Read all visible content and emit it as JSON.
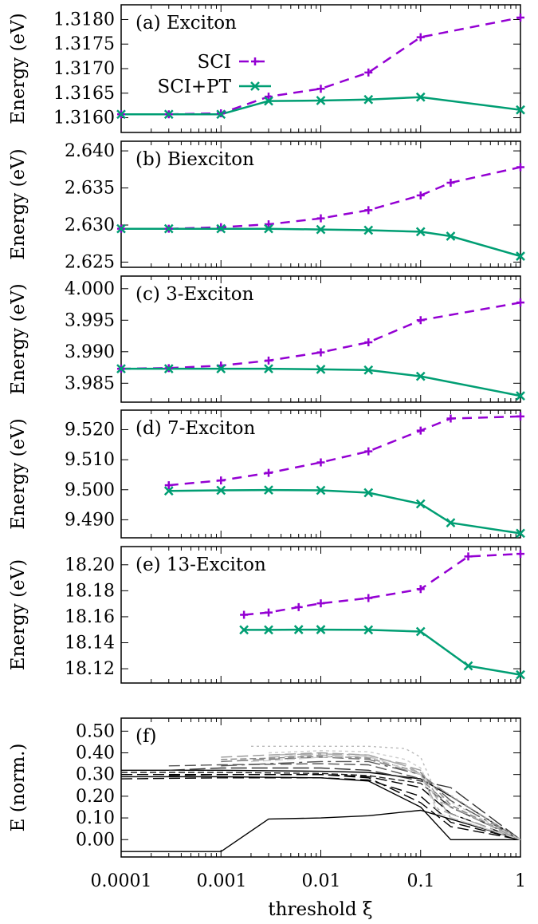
{
  "colors": {
    "sci": "#9400d3",
    "sci_pt": "#009e73",
    "axis": "#000000"
  },
  "xaxis": {
    "label": "threshold ξ",
    "scale": "log",
    "range": [
      0.0001,
      1
    ],
    "ticks": [
      0.0001,
      0.001,
      0.01,
      0.1,
      1
    ],
    "tick_labels": [
      "0.0001",
      "0.001",
      "0.01",
      "0.1",
      "1"
    ]
  },
  "chart_data": [
    {
      "type": "line",
      "panel_label": "(a)  Exciton",
      "ylabel": "Energy (eV)",
      "ylim": [
        1.3157,
        1.3183
      ],
      "yticks": [
        1.316,
        1.3165,
        1.317,
        1.3175,
        1.318
      ],
      "ytick_labels": [
        "1.3160",
        "1.3165",
        "1.3170",
        "1.3175",
        "1.3180"
      ],
      "legend": {
        "placement": "top-left",
        "entries": [
          "SCI",
          "SCI+PT"
        ]
      },
      "series": [
        {
          "name": "SCI",
          "style": "dashed",
          "marker": "plus",
          "x": [
            0.0001,
            0.0003,
            0.001,
            0.003,
            0.01,
            0.03,
            0.1,
            1
          ],
          "y": [
            1.31607,
            1.31607,
            1.31609,
            1.31643,
            1.31659,
            1.31692,
            1.31764,
            1.31804
          ]
        },
        {
          "name": "SCI+PT",
          "style": "solid",
          "marker": "cross",
          "x": [
            0.0001,
            0.0003,
            0.001,
            0.003,
            0.01,
            0.03,
            0.1,
            1
          ],
          "y": [
            1.31607,
            1.31607,
            1.31607,
            1.31634,
            1.31635,
            1.31637,
            1.31642,
            1.31616
          ]
        }
      ]
    },
    {
      "type": "line",
      "panel_label": "(b)  Biexciton",
      "ylabel": "Energy (eV)",
      "ylim": [
        2.6243,
        2.6413
      ],
      "yticks": [
        2.625,
        2.63,
        2.635,
        2.64
      ],
      "ytick_labels": [
        "2.625",
        "2.630",
        "2.635",
        "2.640"
      ],
      "series": [
        {
          "name": "SCI",
          "style": "dashed",
          "marker": "plus",
          "x": [
            0.0001,
            0.0003,
            0.001,
            0.003,
            0.01,
            0.03,
            0.1,
            0.2,
            1
          ],
          "y": [
            2.6295,
            2.6295,
            2.6297,
            2.6301,
            2.6309,
            2.632,
            2.634,
            2.6357,
            2.6378
          ]
        },
        {
          "name": "SCI+PT",
          "style": "solid",
          "marker": "cross",
          "x": [
            0.0001,
            0.0003,
            0.001,
            0.003,
            0.01,
            0.03,
            0.1,
            0.2,
            1
          ],
          "y": [
            2.6295,
            2.6295,
            2.6295,
            2.6295,
            2.6294,
            2.6293,
            2.6291,
            2.6285,
            2.6258
          ]
        }
      ]
    },
    {
      "type": "line",
      "panel_label": "(c)  3-Exciton",
      "ylabel": "Energy (eV)",
      "ylim": [
        3.982,
        4.002
      ],
      "yticks": [
        3.985,
        3.99,
        3.995,
        4.0
      ],
      "ytick_labels": [
        "3.985",
        "3.990",
        "3.995",
        "4.000"
      ],
      "series": [
        {
          "name": "SCI",
          "style": "dashed",
          "marker": "plus",
          "x": [
            0.0001,
            0.0003,
            0.001,
            0.003,
            0.01,
            0.03,
            0.1,
            1
          ],
          "y": [
            3.9873,
            3.9874,
            3.9878,
            3.9886,
            3.9899,
            3.9915,
            3.995,
            3.9978
          ]
        },
        {
          "name": "SCI+PT",
          "style": "solid",
          "marker": "cross",
          "x": [
            0.0001,
            0.0003,
            0.001,
            0.003,
            0.01,
            0.03,
            0.1,
            1
          ],
          "y": [
            3.9873,
            3.9873,
            3.9873,
            3.9873,
            3.9872,
            3.9871,
            3.9861,
            3.983
          ]
        }
      ]
    },
    {
      "type": "line",
      "panel_label": "(d)  7-Exciton",
      "ylabel": "Energy (eV)",
      "ylim": [
        9.484,
        9.5265
      ],
      "yticks": [
        9.49,
        9.5,
        9.51,
        9.52
      ],
      "ytick_labels": [
        "9.490",
        "9.500",
        "9.510",
        "9.520"
      ],
      "series": [
        {
          "name": "SCI",
          "style": "dashed",
          "marker": "plus",
          "x": [
            0.0003,
            0.001,
            0.003,
            0.01,
            0.03,
            0.1,
            0.2,
            1
          ],
          "y": [
            9.5015,
            9.5031,
            9.5056,
            9.5091,
            9.5128,
            9.5197,
            9.5237,
            9.5244
          ]
        },
        {
          "name": "SCI+PT",
          "style": "solid",
          "marker": "cross",
          "x": [
            0.0003,
            0.001,
            0.003,
            0.01,
            0.03,
            0.1,
            0.2,
            1
          ],
          "y": [
            9.4996,
            9.4998,
            9.4999,
            9.4998,
            9.499,
            9.4953,
            9.489,
            9.4855
          ]
        }
      ]
    },
    {
      "type": "line",
      "panel_label": "(e)  13-Exciton",
      "ylabel": "Energy (eV)",
      "ylim": [
        18.109,
        18.214
      ],
      "yticks": [
        18.12,
        18.14,
        18.16,
        18.18,
        18.2
      ],
      "ytick_labels": [
        "18.12",
        "18.14",
        "18.16",
        "18.18",
        "18.20"
      ],
      "series": [
        {
          "name": "SCI",
          "style": "dashed",
          "marker": "plus",
          "x": [
            0.0017,
            0.003,
            0.006,
            0.01,
            0.03,
            0.1,
            0.3,
            1
          ],
          "y": [
            18.1615,
            18.1633,
            18.1674,
            18.1703,
            18.1744,
            18.1813,
            18.2064,
            18.2084
          ]
        },
        {
          "name": "SCI+PT",
          "style": "solid",
          "marker": "cross",
          "x": [
            0.0017,
            0.003,
            0.006,
            0.01,
            0.03,
            0.1,
            0.3,
            1
          ],
          "y": [
            18.1499,
            18.1499,
            18.1501,
            18.1501,
            18.1499,
            18.1486,
            18.1222,
            18.1154
          ]
        }
      ]
    },
    {
      "type": "line",
      "panel_label": "(f)",
      "ylabel": "E (norm.)",
      "ylim": [
        -0.08,
        0.56
      ],
      "yticks": [
        0.0,
        0.1,
        0.2,
        0.3,
        0.4,
        0.5
      ],
      "ytick_labels": [
        "0.00",
        "0.10",
        "0.20",
        "0.30",
        "0.40",
        "0.50"
      ],
      "series": [
        {
          "color": "#000000",
          "dash": "",
          "x": [
            0.0001,
            0.001,
            0.003,
            0.01,
            0.03,
            0.1,
            1
          ],
          "y": [
            -0.055,
            -0.055,
            0.095,
            0.1,
            0.11,
            0.135,
            0.0
          ]
        },
        {
          "color": "#000000",
          "dash": "",
          "x": [
            0.0001,
            0.001,
            0.01,
            0.03,
            0.1,
            0.2,
            1
          ],
          "y": [
            0.32,
            0.32,
            0.315,
            0.31,
            0.28,
            0.2,
            0.0
          ]
        },
        {
          "color": "#000000",
          "dash": "",
          "x": [
            0.0001,
            0.001,
            0.01,
            0.03,
            0.1,
            0.2,
            1
          ],
          "y": [
            0.29,
            0.29,
            0.285,
            0.27,
            0.15,
            0.0,
            0.0
          ]
        },
        {
          "color": "#000000",
          "dash": "14,6",
          "x": [
            0.0001,
            0.001,
            0.01,
            0.03,
            0.1,
            0.2,
            1
          ],
          "y": [
            0.3,
            0.3,
            0.3,
            0.29,
            0.24,
            0.12,
            0.0
          ]
        },
        {
          "color": "#000000",
          "dash": "14,6",
          "x": [
            0.0001,
            0.001,
            0.01,
            0.03,
            0.1,
            0.2,
            1
          ],
          "y": [
            0.28,
            0.285,
            0.285,
            0.275,
            0.2,
            0.08,
            0.0
          ]
        },
        {
          "color": "#000000",
          "dash": "14,6",
          "x": [
            0.0003,
            0.001,
            0.01,
            0.03,
            0.1,
            0.2,
            1
          ],
          "y": [
            0.295,
            0.3,
            0.3,
            0.285,
            0.17,
            0.06,
            0.0
          ]
        },
        {
          "color": "#222222",
          "dash": "8,4",
          "x": [
            0.0001,
            0.001,
            0.01,
            0.03,
            0.1,
            0.2,
            1
          ],
          "y": [
            0.31,
            0.31,
            0.305,
            0.295,
            0.26,
            0.15,
            0.0
          ]
        },
        {
          "color": "#333333",
          "dash": "20,6",
          "x": [
            0.0003,
            0.001,
            0.01,
            0.03,
            0.1,
            0.2,
            1
          ],
          "y": [
            0.32,
            0.33,
            0.33,
            0.32,
            0.27,
            0.24,
            0.0
          ]
        },
        {
          "color": "#555555",
          "dash": "20,6,4,6",
          "x": [
            0.001,
            0.003,
            0.01,
            0.03,
            0.1,
            0.2,
            1
          ],
          "y": [
            0.34,
            0.35,
            0.36,
            0.36,
            0.3,
            0.18,
            0.0
          ]
        },
        {
          "color": "#555555",
          "dash": "14,6",
          "x": [
            0.0003,
            0.001,
            0.01,
            0.03,
            0.1,
            0.2,
            1
          ],
          "y": [
            0.34,
            0.345,
            0.35,
            0.345,
            0.28,
            0.15,
            0.0
          ]
        },
        {
          "color": "#777777",
          "dash": "14,6",
          "x": [
            0.001,
            0.003,
            0.01,
            0.03,
            0.1,
            0.2,
            1
          ],
          "y": [
            0.36,
            0.37,
            0.38,
            0.37,
            0.3,
            0.2,
            0.0
          ]
        },
        {
          "color": "#888888",
          "dash": "8,4",
          "x": [
            0.001,
            0.003,
            0.01,
            0.03,
            0.1,
            0.2,
            1
          ],
          "y": [
            0.37,
            0.375,
            0.385,
            0.375,
            0.31,
            0.16,
            0.0
          ]
        },
        {
          "color": "#999999",
          "dash": "14,6",
          "x": [
            0.001,
            0.003,
            0.01,
            0.03,
            0.1,
            0.2,
            1
          ],
          "y": [
            0.38,
            0.39,
            0.4,
            0.39,
            0.32,
            0.1,
            0.0
          ]
        },
        {
          "color": "#aaaaaa",
          "dash": "14,6",
          "x": [
            0.003,
            0.01,
            0.03,
            0.07,
            0.1,
            0.15,
            1
          ],
          "y": [
            0.38,
            0.39,
            0.38,
            0.35,
            0.3,
            0.18,
            0.0
          ]
        },
        {
          "color": "#aaaaaa",
          "dash": "20,6,4,6",
          "x": [
            0.003,
            0.01,
            0.03,
            0.07,
            0.1,
            0.15,
            1
          ],
          "y": [
            0.39,
            0.395,
            0.39,
            0.34,
            0.3,
            0.14,
            0.0
          ]
        },
        {
          "color": "#bbbbbb",
          "dash": "3,4",
          "x": [
            0.002,
            0.01,
            0.03,
            0.07,
            0.1,
            0.13,
            1
          ],
          "y": [
            0.43,
            0.43,
            0.43,
            0.42,
            0.38,
            0.26,
            0.0
          ]
        },
        {
          "color": "#cccccc",
          "dash": "4,4",
          "x": [
            0.003,
            0.01,
            0.03,
            0.07,
            0.1,
            0.13,
            1
          ],
          "y": [
            0.4,
            0.41,
            0.405,
            0.37,
            0.33,
            0.22,
            0.0
          ]
        },
        {
          "color": "#cccccc",
          "dash": "10,5",
          "x": [
            0.002,
            0.005,
            0.01,
            0.03,
            0.1,
            0.15,
            1
          ],
          "y": [
            0.36,
            0.37,
            0.38,
            0.385,
            0.3,
            0.12,
            0.0
          ]
        }
      ]
    }
  ]
}
